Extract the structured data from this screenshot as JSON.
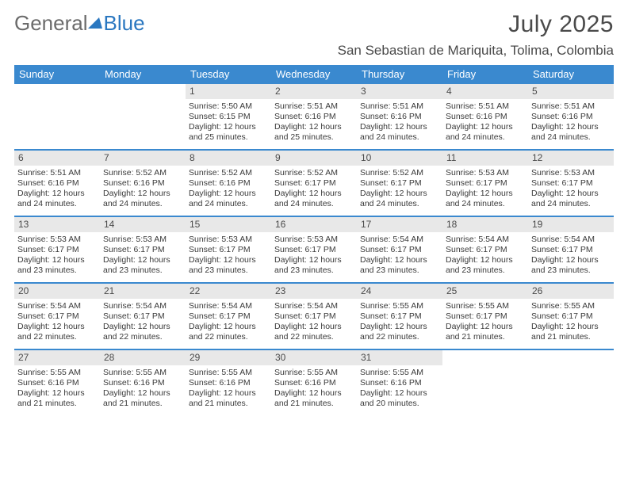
{
  "logo": {
    "word1": "General",
    "word2": "Blue"
  },
  "title": "July 2025",
  "location": "San Sebastian de Mariquita, Tolima, Colombia",
  "colors": {
    "accent": "#3a89cf",
    "logo_blue": "#2a77c0",
    "logo_gray": "#6b6b6b",
    "daynum_bg": "#e8e8e8",
    "text": "#3a3a3a",
    "bg": "#ffffff"
  },
  "dow": [
    "Sunday",
    "Monday",
    "Tuesday",
    "Wednesday",
    "Thursday",
    "Friday",
    "Saturday"
  ],
  "layout": {
    "cols": 7,
    "leading_blanks": 2,
    "days_in_month": 31
  },
  "days": [
    {
      "n": 1,
      "sunrise": "5:50 AM",
      "sunset": "6:15 PM",
      "daylight": "12 hours and 25 minutes."
    },
    {
      "n": 2,
      "sunrise": "5:51 AM",
      "sunset": "6:16 PM",
      "daylight": "12 hours and 25 minutes."
    },
    {
      "n": 3,
      "sunrise": "5:51 AM",
      "sunset": "6:16 PM",
      "daylight": "12 hours and 24 minutes."
    },
    {
      "n": 4,
      "sunrise": "5:51 AM",
      "sunset": "6:16 PM",
      "daylight": "12 hours and 24 minutes."
    },
    {
      "n": 5,
      "sunrise": "5:51 AM",
      "sunset": "6:16 PM",
      "daylight": "12 hours and 24 minutes."
    },
    {
      "n": 6,
      "sunrise": "5:51 AM",
      "sunset": "6:16 PM",
      "daylight": "12 hours and 24 minutes."
    },
    {
      "n": 7,
      "sunrise": "5:52 AM",
      "sunset": "6:16 PM",
      "daylight": "12 hours and 24 minutes."
    },
    {
      "n": 8,
      "sunrise": "5:52 AM",
      "sunset": "6:16 PM",
      "daylight": "12 hours and 24 minutes."
    },
    {
      "n": 9,
      "sunrise": "5:52 AM",
      "sunset": "6:17 PM",
      "daylight": "12 hours and 24 minutes."
    },
    {
      "n": 10,
      "sunrise": "5:52 AM",
      "sunset": "6:17 PM",
      "daylight": "12 hours and 24 minutes."
    },
    {
      "n": 11,
      "sunrise": "5:53 AM",
      "sunset": "6:17 PM",
      "daylight": "12 hours and 24 minutes."
    },
    {
      "n": 12,
      "sunrise": "5:53 AM",
      "sunset": "6:17 PM",
      "daylight": "12 hours and 24 minutes."
    },
    {
      "n": 13,
      "sunrise": "5:53 AM",
      "sunset": "6:17 PM",
      "daylight": "12 hours and 23 minutes."
    },
    {
      "n": 14,
      "sunrise": "5:53 AM",
      "sunset": "6:17 PM",
      "daylight": "12 hours and 23 minutes."
    },
    {
      "n": 15,
      "sunrise": "5:53 AM",
      "sunset": "6:17 PM",
      "daylight": "12 hours and 23 minutes."
    },
    {
      "n": 16,
      "sunrise": "5:53 AM",
      "sunset": "6:17 PM",
      "daylight": "12 hours and 23 minutes."
    },
    {
      "n": 17,
      "sunrise": "5:54 AM",
      "sunset": "6:17 PM",
      "daylight": "12 hours and 23 minutes."
    },
    {
      "n": 18,
      "sunrise": "5:54 AM",
      "sunset": "6:17 PM",
      "daylight": "12 hours and 23 minutes."
    },
    {
      "n": 19,
      "sunrise": "5:54 AM",
      "sunset": "6:17 PM",
      "daylight": "12 hours and 23 minutes."
    },
    {
      "n": 20,
      "sunrise": "5:54 AM",
      "sunset": "6:17 PM",
      "daylight": "12 hours and 22 minutes."
    },
    {
      "n": 21,
      "sunrise": "5:54 AM",
      "sunset": "6:17 PM",
      "daylight": "12 hours and 22 minutes."
    },
    {
      "n": 22,
      "sunrise": "5:54 AM",
      "sunset": "6:17 PM",
      "daylight": "12 hours and 22 minutes."
    },
    {
      "n": 23,
      "sunrise": "5:54 AM",
      "sunset": "6:17 PM",
      "daylight": "12 hours and 22 minutes."
    },
    {
      "n": 24,
      "sunrise": "5:55 AM",
      "sunset": "6:17 PM",
      "daylight": "12 hours and 22 minutes."
    },
    {
      "n": 25,
      "sunrise": "5:55 AM",
      "sunset": "6:17 PM",
      "daylight": "12 hours and 21 minutes."
    },
    {
      "n": 26,
      "sunrise": "5:55 AM",
      "sunset": "6:17 PM",
      "daylight": "12 hours and 21 minutes."
    },
    {
      "n": 27,
      "sunrise": "5:55 AM",
      "sunset": "6:16 PM",
      "daylight": "12 hours and 21 minutes."
    },
    {
      "n": 28,
      "sunrise": "5:55 AM",
      "sunset": "6:16 PM",
      "daylight": "12 hours and 21 minutes."
    },
    {
      "n": 29,
      "sunrise": "5:55 AM",
      "sunset": "6:16 PM",
      "daylight": "12 hours and 21 minutes."
    },
    {
      "n": 30,
      "sunrise": "5:55 AM",
      "sunset": "6:16 PM",
      "daylight": "12 hours and 21 minutes."
    },
    {
      "n": 31,
      "sunrise": "5:55 AM",
      "sunset": "6:16 PM",
      "daylight": "12 hours and 20 minutes."
    }
  ],
  "labels": {
    "sunrise": "Sunrise:",
    "sunset": "Sunset:",
    "daylight": "Daylight:"
  }
}
